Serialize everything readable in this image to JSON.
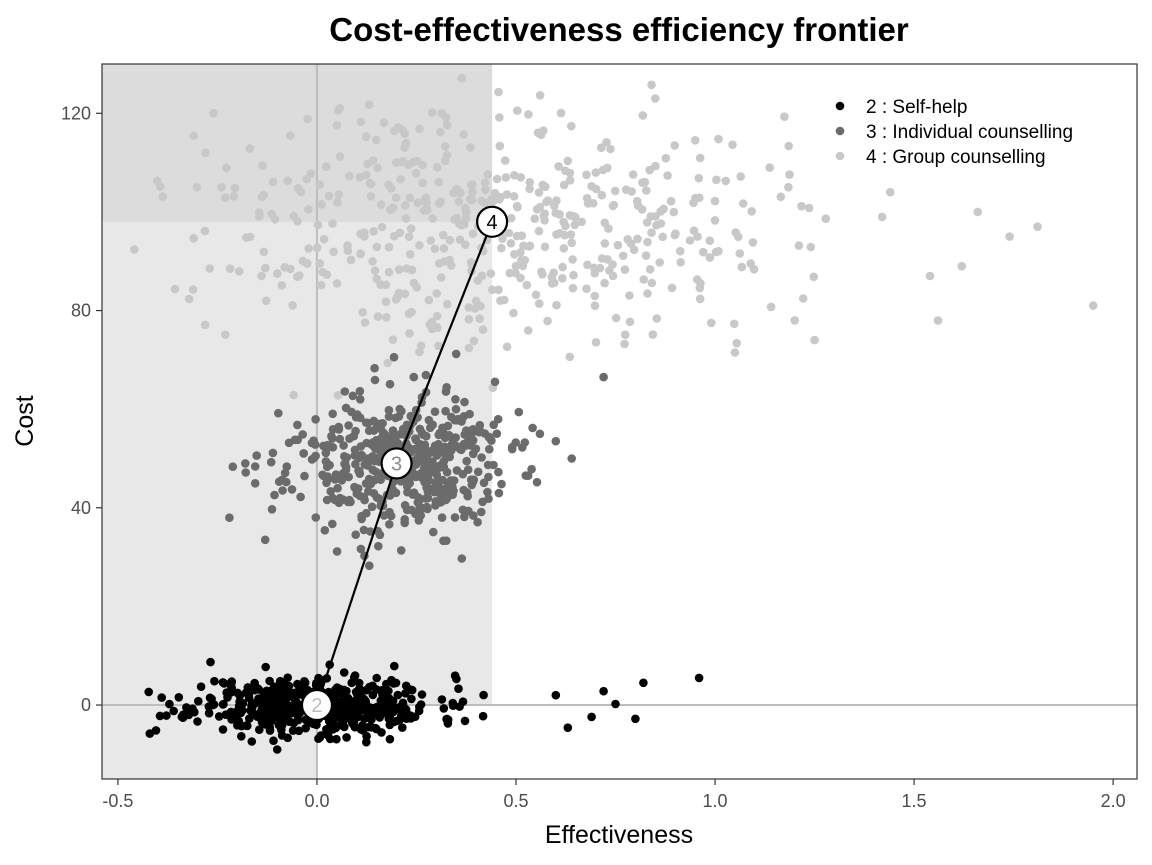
{
  "chart_data": {
    "type": "scatter",
    "title": "Cost-effectiveness efficiency frontier",
    "xlabel": "Effectiveness",
    "ylabel": "Cost",
    "xlim": [
      -0.54,
      2.06
    ],
    "ylim": [
      -15,
      130
    ],
    "x_ticks": [
      -0.5,
      0.0,
      0.5,
      1.0,
      1.5,
      2.0
    ],
    "x_tick_labels": [
      "-0.5",
      "0.0",
      "0.5",
      "1.0",
      "1.5",
      "2.0"
    ],
    "y_ticks": [
      0,
      40,
      80,
      120
    ],
    "y_tick_labels": [
      "0",
      "40",
      "80",
      "120"
    ],
    "grid": false,
    "legend_position": "top-right",
    "shaded_regions": [
      {
        "x": [
          -0.54,
          0.0
        ],
        "y": [
          -15,
          130
        ],
        "color": "#e8e8e8"
      },
      {
        "x": [
          -0.54,
          0.44
        ],
        "y": [
          0,
          130
        ],
        "color": "#e8e8e8"
      },
      {
        "x": [
          -0.54,
          0.44
        ],
        "y": [
          98,
          130
        ],
        "color": "#dcdcdc"
      }
    ],
    "reference_lines": {
      "x": 0,
      "y": 0,
      "color": "#bdbdbd"
    },
    "series": [
      {
        "name": "2 : Self-help",
        "label": "2",
        "color": "#000000",
        "mean": [
          0.0,
          0.0
        ],
        "sd": [
          0.15,
          3.0
        ],
        "n": 500,
        "seed": 11,
        "points_x": [
          0.96,
          0.82,
          0.8,
          0.75,
          0.72,
          0.69,
          0.63,
          0.6,
          -0.42,
          -0.36,
          -0.39
        ],
        "points_y": [
          5.5,
          4.5,
          -2.8,
          0.2,
          2.8,
          -2.4,
          -4.6,
          2.0,
          -5.8,
          -1.2,
          1.5
        ]
      },
      {
        "name": "3 : Individual counselling",
        "label": "3",
        "color": "#6b6b6b",
        "mean": [
          0.2,
          49
        ],
        "sd": [
          0.14,
          7.0
        ],
        "n": 500,
        "seed": 23,
        "points_x": [
          0.72,
          0.64,
          0.6,
          0.56,
          -0.18,
          -0.13,
          -0.22
        ],
        "points_y": [
          66.5,
          50.0,
          53.5,
          55.0,
          49.0,
          33.5,
          38.0
        ]
      },
      {
        "name": "4 : Group counselling",
        "label": "4",
        "color": "#c8c8c8",
        "mean": [
          0.44,
          98
        ],
        "sd": [
          0.35,
          12.0
        ],
        "n": 500,
        "seed": 37,
        "points_x": [
          1.95,
          1.81,
          1.74,
          1.66,
          1.62,
          1.56,
          1.54,
          1.44,
          1.42,
          1.25,
          1.2,
          1.05,
          0.85,
          -0.26,
          -0.28,
          -0.24
        ],
        "points_y": [
          81.0,
          97.0,
          95.0,
          100.0,
          89.0,
          78.0,
          87.0,
          104.0,
          99.0,
          74.0,
          78.0,
          71.5,
          123.0,
          120.0,
          112.0,
          105.0
        ]
      }
    ],
    "frontier": {
      "points": [
        [
          0.0,
          0.0
        ],
        [
          0.2,
          49.0
        ],
        [
          0.44,
          98.0
        ]
      ],
      "labels": [
        "2",
        "3",
        "4"
      ],
      "label_colors": [
        "#bdbdbd",
        "#8a8a8a",
        "#000000"
      ],
      "line_color": "#000000"
    }
  }
}
